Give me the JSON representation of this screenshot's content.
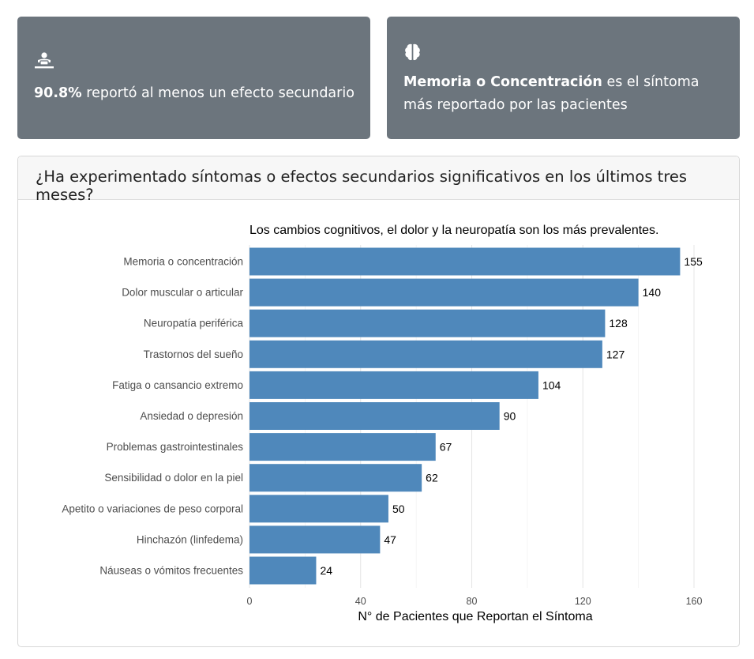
{
  "colors": {
    "card_bg": "#6c757d",
    "bar": "#4f88bb",
    "grid": "#ebebeb"
  },
  "cards": [
    {
      "icon": "person-with-device-icon",
      "highlight": "90.8%",
      "text": " reportó al menos un efecto secundario"
    },
    {
      "icon": "brain-icon",
      "highlight": "Memoria o Concentración",
      "text": " es el síntoma más reportado por las pacientes"
    }
  ],
  "panel": {
    "title": "¿Ha experimentado síntomas o efectos secundarios significativos en los últimos tres meses?"
  },
  "chart_data": {
    "type": "bar",
    "orientation": "horizontal",
    "title": "Los cambios cognitivos, el dolor y la neuropatía son los más prevalentes.",
    "xlabel": "N° de Pacientes que Reportan el Síntoma",
    "ylabel": "",
    "xlim": [
      0,
      160
    ],
    "xticks": [
      0,
      40,
      80,
      120,
      160
    ],
    "grid": true,
    "categories": [
      "Memoria o concentración",
      "Dolor muscular o articular",
      "Neuropatía periférica",
      "Trastornos del sueño",
      "Fatiga o cansancio extremo",
      "Ansiedad o depresión",
      "Problemas gastrointestinales",
      "Sensibilidad o dolor en la piel",
      "Apetito o variaciones de peso corporal",
      "Hinchazón (linfedema)",
      "Náuseas o vómitos frecuentes"
    ],
    "values": [
      155,
      140,
      128,
      127,
      104,
      90,
      67,
      62,
      50,
      47,
      24
    ]
  }
}
